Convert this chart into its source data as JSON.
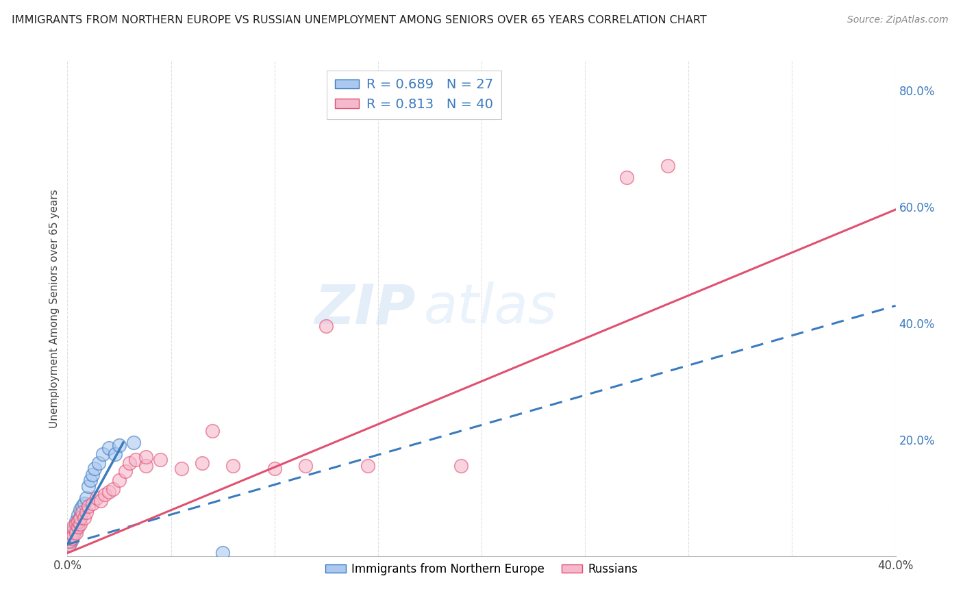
{
  "title": "IMMIGRANTS FROM NORTHERN EUROPE VS RUSSIAN UNEMPLOYMENT AMONG SENIORS OVER 65 YEARS CORRELATION CHART",
  "source": "Source: ZipAtlas.com",
  "ylabel": "Unemployment Among Seniors over 65 years",
  "xlim": [
    0.0,
    0.4
  ],
  "ylim": [
    0.0,
    0.85
  ],
  "xticks": [
    0.0,
    0.05,
    0.1,
    0.15,
    0.2,
    0.25,
    0.3,
    0.35,
    0.4
  ],
  "ytick_right": [
    0.0,
    0.2,
    0.4,
    0.6,
    0.8
  ],
  "ytick_right_labels": [
    "",
    "20.0%",
    "40.0%",
    "60.0%",
    "80.0%"
  ],
  "blue_R": 0.689,
  "blue_N": 27,
  "pink_R": 0.813,
  "pink_N": 40,
  "blue_color": "#aac8f0",
  "pink_color": "#f5b8cc",
  "blue_line_color": "#3a7abf",
  "pink_line_color": "#e05070",
  "blue_scatter_x": [
    0.001,
    0.001,
    0.002,
    0.002,
    0.002,
    0.003,
    0.003,
    0.004,
    0.004,
    0.005,
    0.005,
    0.006,
    0.006,
    0.007,
    0.008,
    0.009,
    0.01,
    0.011,
    0.012,
    0.013,
    0.015,
    0.017,
    0.02,
    0.023,
    0.025,
    0.032,
    0.075
  ],
  "blue_scatter_y": [
    0.02,
    0.025,
    0.025,
    0.03,
    0.035,
    0.04,
    0.045,
    0.045,
    0.06,
    0.055,
    0.07,
    0.065,
    0.08,
    0.085,
    0.09,
    0.1,
    0.12,
    0.13,
    0.14,
    0.15,
    0.16,
    0.175,
    0.185,
    0.175,
    0.19,
    0.195,
    0.005
  ],
  "pink_scatter_x": [
    0.001,
    0.001,
    0.002,
    0.002,
    0.003,
    0.003,
    0.004,
    0.004,
    0.005,
    0.005,
    0.006,
    0.006,
    0.007,
    0.008,
    0.009,
    0.01,
    0.012,
    0.014,
    0.016,
    0.018,
    0.02,
    0.022,
    0.025,
    0.028,
    0.03,
    0.033,
    0.038,
    0.038,
    0.045,
    0.055,
    0.065,
    0.07,
    0.08,
    0.1,
    0.115,
    0.125,
    0.145,
    0.19,
    0.27,
    0.29
  ],
  "pink_scatter_y": [
    0.02,
    0.025,
    0.03,
    0.04,
    0.035,
    0.05,
    0.04,
    0.055,
    0.05,
    0.06,
    0.055,
    0.065,
    0.075,
    0.065,
    0.075,
    0.085,
    0.09,
    0.1,
    0.095,
    0.105,
    0.11,
    0.115,
    0.13,
    0.145,
    0.16,
    0.165,
    0.155,
    0.17,
    0.165,
    0.15,
    0.16,
    0.215,
    0.155,
    0.15,
    0.155,
    0.395,
    0.155,
    0.155,
    0.65,
    0.67
  ],
  "blue_trend_x": [
    0.0,
    0.4
  ],
  "blue_trend_y": [
    0.02,
    0.43
  ],
  "pink_trend_x": [
    0.0,
    0.4
  ],
  "pink_trend_y": [
    0.005,
    0.595
  ],
  "background_color": "#ffffff",
  "grid_color": "#dddddd",
  "watermark_zip": "ZIP",
  "watermark_atlas": "atlas",
  "legend1_label": "R = 0.689   N = 27",
  "legend2_label": "R = 0.813   N = 40",
  "legend_blue_text_color": "#3a7abf",
  "legend_pink_text_color": "#3a7abf",
  "right_axis_color": "#3a7abf"
}
